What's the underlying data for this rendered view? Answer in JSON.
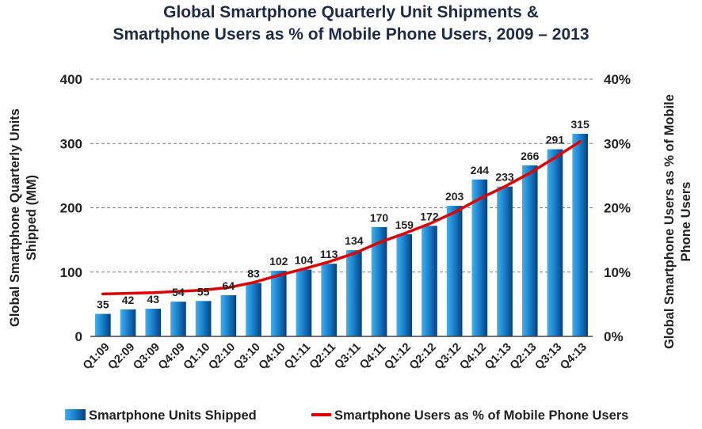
{
  "chart_data": {
    "type": "bar",
    "title_line1": "Global Smartphone Quarterly Unit Shipments &",
    "title_line2": "Smartphone Users as % of Mobile Phone Users, 2009 – 2013",
    "ylabel_left_line1": "Global Smartphone Quarterly Units",
    "ylabel_left_line2": "Shipped (MM)",
    "ylabel_right_line1": "Global Smartphone Users as % of Mobile",
    "ylabel_right_line2": "Phone Users",
    "ylim_left": [
      0,
      400
    ],
    "ylim_right": [
      0,
      40
    ],
    "yticks_left": [
      "0",
      "100",
      "200",
      "300",
      "400"
    ],
    "yticks_right": [
      "0%",
      "10%",
      "20%",
      "30%",
      "40%"
    ],
    "grid": true,
    "legend_position": "bottom",
    "categories": [
      "Q1:09",
      "Q2:09",
      "Q3:09",
      "Q4:09",
      "Q1:10",
      "Q2:10",
      "Q3:10",
      "Q4:10",
      "Q1:11",
      "Q2:11",
      "Q3:11",
      "Q4:11",
      "Q1:12",
      "Q2:12",
      "Q3:12",
      "Q4:12",
      "Q1:13",
      "Q2:13",
      "Q3:13",
      "Q4:13"
    ],
    "series": [
      {
        "name": "Smartphone Units Shipped",
        "type": "bar",
        "axis": "left",
        "color": "#1f6fb5",
        "values": [
          35,
          42,
          43,
          54,
          55,
          64,
          83,
          102,
          104,
          113,
          134,
          170,
          159,
          172,
          203,
          244,
          233,
          266,
          291,
          315
        ]
      },
      {
        "name": "Smartphone Users as % of Mobile Phone Users",
        "type": "line",
        "axis": "right",
        "color": "#e00000",
        "values": [
          6.6,
          6.7,
          6.8,
          7.0,
          7.2,
          7.6,
          8.4,
          9.5,
          10.5,
          11.6,
          12.9,
          14.6,
          16.0,
          17.5,
          19.3,
          21.4,
          23.3,
          25.4,
          27.8,
          30.3
        ]
      }
    ]
  }
}
